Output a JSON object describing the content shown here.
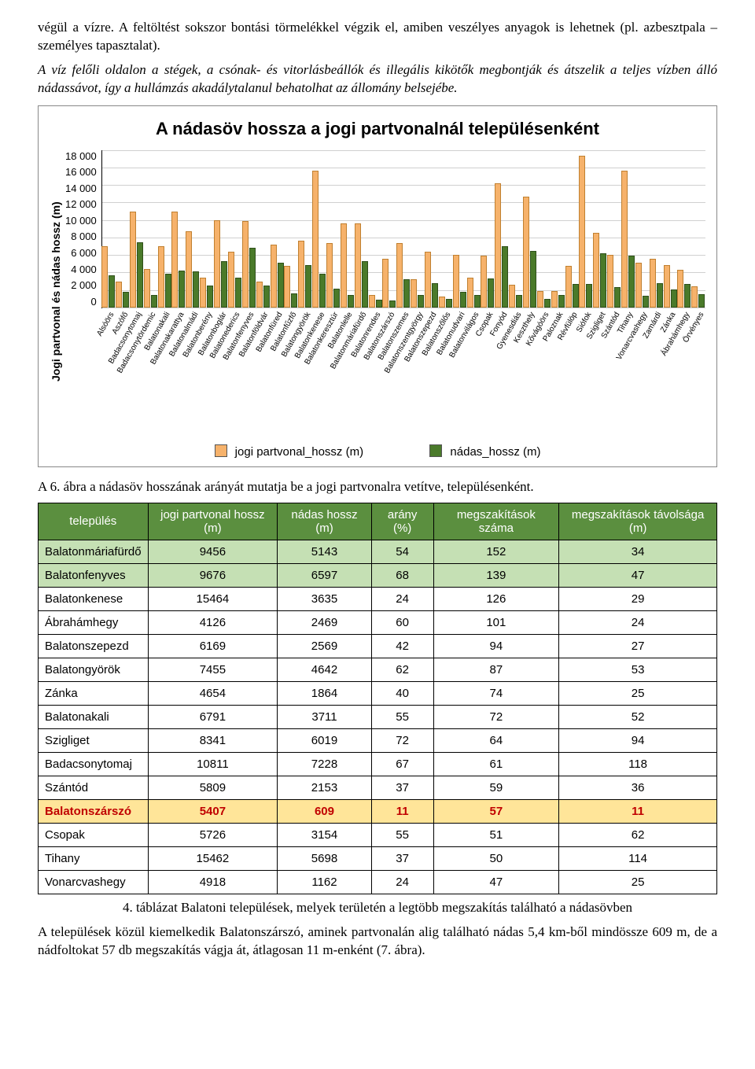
{
  "paragraphs": {
    "p1": "végül a vízre. A feltöltést sokszor bontási törmelékkel végzik el, amiben veszélyes anyagok is lehetnek (pl. azbesztpala – személyes tapasztalat).",
    "p2": "A víz felőli oldalon a stégek, a csónak- és vitorlásbeállók és illegális kikötők megbontják és átszelik a teljes vízben álló nádassávot, így a hullámzás akadálytalanul behatolhat az állomány belsejébe.",
    "p3": "A 6. ábra a nádasöv hosszának arányát mutatja be a jogi partvonalra vetítve, településenként.",
    "p4": "4. táblázat Balatoni települések, melyek területén a legtöbb megszakítás található a nádasövben",
    "p5": "A települések közül kiemelkedik Balatonszárszó, aminek partvonalán alig található nádas 5,4 km-ből mindössze 609 m, de a nádfoltokat 57 db megszakítás vágja át, átlagosan 11 m-enként (7. ábra)."
  },
  "chart": {
    "title": "A nádasöv hossza  a jogi partvonalnál településenként",
    "y_label": "Jogi partvonal és nádas hossz (m)",
    "y_ticks": [
      "18 000",
      "16 000",
      "14 000",
      "12 000",
      "10 000",
      "8 000",
      "6 000",
      "4 000",
      "2 000",
      "0"
    ],
    "y_max": 18000,
    "legend_a": "jogi partvonal_hossz (m)",
    "legend_b": "nádas_hossz (m)",
    "categories": [
      "Alsóörs",
      "Aszófő",
      "Badacsonytomaj",
      "Badacsonytördemic",
      "Balatonakali",
      "Balatonakarattya",
      "Balatonalmádi",
      "Balatonberény",
      "Balatonboglár",
      "Balatonederics",
      "Balatonfenyves",
      "Balatonföldvár",
      "Balatonfüred",
      "Balatonfűzfő",
      "Balatongyörök",
      "Balatonkenese",
      "Balatonkeresztúr",
      "Balatonlelle",
      "Balatonmáriafürdő",
      "Balatonrendes",
      "Balatonszárszó",
      "Balatonszemes",
      "Balatonszentgyörgy",
      "Balatonszepezd",
      "Balatonszőlős",
      "Balatonudvari",
      "Balatonvilágos",
      "Csopak",
      "Fonyód",
      "Gyenesdiás",
      "Keszthely",
      "Kővágóörs",
      "Paloznak",
      "Révfülöp",
      "Siófok",
      "Szigliget",
      "Szántód",
      "Tihany",
      "Vonarcvashegy",
      "Zamárdi",
      "Zánka",
      "Ábrahámhegy",
      "Örvényes"
    ],
    "series_a": [
      6800,
      2800,
      10811,
      4200,
      6791,
      10800,
      8500,
      3200,
      9800,
      6200,
      9676,
      2800,
      7000,
      4600,
      7455,
      15464,
      7200,
      9400,
      9456,
      1200,
      5407,
      7200,
      3000,
      6169,
      1100,
      5800,
      3200,
      5726,
      14000,
      2400,
      12500,
      1700,
      1700,
      4600,
      17200,
      8341,
      5809,
      15462,
      4918,
      5400,
      4654,
      4126,
      2200
    ],
    "series_b": [
      3500,
      1600,
      7228,
      1200,
      3711,
      4000,
      3900,
      2300,
      5100,
      3200,
      6597,
      2300,
      4900,
      1400,
      4642,
      3635,
      2000,
      1200,
      5143,
      700,
      609,
      3000,
      1200,
      2569,
      800,
      1600,
      1200,
      3154,
      6800,
      1200,
      6300,
      800,
      1200,
      2500,
      2500,
      6019,
      2153,
      5698,
      1162,
      2600,
      1864,
      2469,
      1300
    ]
  },
  "table": {
    "headers": [
      "település",
      "jogi partvonal hossz (m)",
      "nádas hossz (m)",
      "arány (%)",
      "megszakítások száma",
      "megszakítások távolsága (m)"
    ],
    "rows": [
      {
        "c": [
          "Balatonmáriafürdő",
          "9456",
          "5143",
          "54",
          "152",
          "34"
        ],
        "cls": "hl-green"
      },
      {
        "c": [
          "Balatonfenyves",
          "9676",
          "6597",
          "68",
          "139",
          "47"
        ],
        "cls": "hl-green"
      },
      {
        "c": [
          "Balatonkenese",
          "15464",
          "3635",
          "24",
          "126",
          "29"
        ],
        "cls": ""
      },
      {
        "c": [
          "Ábrahámhegy",
          "4126",
          "2469",
          "60",
          "101",
          "24"
        ],
        "cls": ""
      },
      {
        "c": [
          "Balatonszepezd",
          "6169",
          "2569",
          "42",
          "94",
          "27"
        ],
        "cls": ""
      },
      {
        "c": [
          "Balatongyörök",
          "7455",
          "4642",
          "62",
          "87",
          "53"
        ],
        "cls": ""
      },
      {
        "c": [
          "Zánka",
          "4654",
          "1864",
          "40",
          "74",
          "25"
        ],
        "cls": ""
      },
      {
        "c": [
          "Balatonakali",
          "6791",
          "3711",
          "55",
          "72",
          "52"
        ],
        "cls": ""
      },
      {
        "c": [
          "Szigliget",
          "8341",
          "6019",
          "72",
          "64",
          "94"
        ],
        "cls": ""
      },
      {
        "c": [
          "Badacsonytomaj",
          "10811",
          "7228",
          "67",
          "61",
          "118"
        ],
        "cls": ""
      },
      {
        "c": [
          "Szántód",
          "5809",
          "2153",
          "37",
          "59",
          "36"
        ],
        "cls": ""
      },
      {
        "c": [
          "Balatonszárszó",
          "5407",
          "609",
          "11",
          "57",
          "11"
        ],
        "cls": "hl-yellow"
      },
      {
        "c": [
          "Csopak",
          "5726",
          "3154",
          "55",
          "51",
          "62"
        ],
        "cls": ""
      },
      {
        "c": [
          "Tihany",
          "15462",
          "5698",
          "37",
          "50",
          "114"
        ],
        "cls": ""
      },
      {
        "c": [
          "Vonarcvashegy",
          "4918",
          "1162",
          "24",
          "47",
          "25"
        ],
        "cls": ""
      }
    ]
  }
}
